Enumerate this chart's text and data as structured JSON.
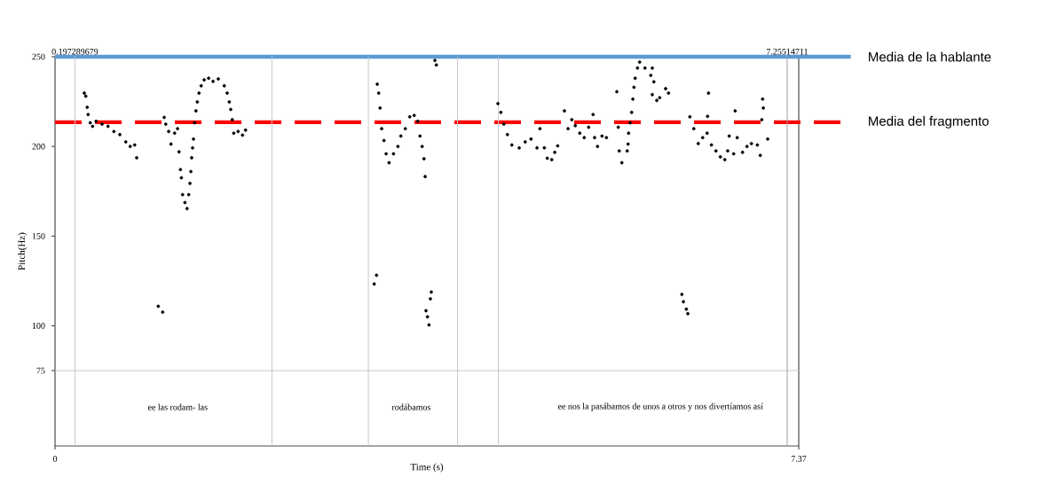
{
  "chart_data": {
    "type": "scatter",
    "xlabel": "Time (s)",
    "ylabel": "Pitch(Hz)",
    "xlim": [
      0,
      7.37
    ],
    "xticks": [
      0,
      7.37
    ],
    "ylim": [
      33,
      250
    ],
    "yticks": [
      75,
      100,
      150,
      200,
      250
    ],
    "marker": "circle",
    "series": [
      {
        "color": "#000000",
        "x": [
          0.29,
          0.305,
          0.319,
          0.328,
          0.349,
          0.372,
          0.407,
          0.466,
          0.525,
          0.583,
          0.642,
          0.701,
          0.745,
          0.789,
          0.809,
          1.023,
          1.067,
          1.082,
          1.097,
          1.126,
          1.149,
          1.185,
          1.214,
          1.229,
          1.243,
          1.252,
          1.264,
          1.287,
          1.308,
          1.325,
          1.337,
          1.346,
          1.354,
          1.363,
          1.372,
          1.383,
          1.396,
          1.41,
          1.427,
          1.448,
          1.478,
          1.522,
          1.566,
          1.618,
          1.677,
          1.706,
          1.727,
          1.741,
          1.756,
          1.771,
          1.814,
          1.858,
          1.888,
          3.163,
          3.186,
          3.193,
          3.207,
          3.221,
          3.237,
          3.26,
          3.281,
          3.31,
          3.354,
          3.398,
          3.427,
          3.471,
          3.515,
          3.559,
          3.594,
          3.617,
          3.638,
          3.656,
          3.668,
          3.676,
          3.691,
          3.706,
          3.72,
          3.729,
          3.764,
          3.779,
          4.389,
          4.418,
          4.447,
          4.483,
          4.527,
          4.6,
          4.659,
          4.717,
          4.776,
          4.805,
          4.849,
          4.878,
          4.922,
          4.952,
          4.981,
          5.048,
          5.084,
          5.121,
          5.156,
          5.2,
          5.244,
          5.288,
          5.332,
          5.347,
          5.376,
          5.42,
          5.464,
          5.567,
          5.582,
          5.591,
          5.617,
          5.67,
          5.679,
          5.684,
          5.699,
          5.714,
          5.726,
          5.737,
          5.749,
          5.772,
          5.793,
          5.846,
          5.904,
          5.919,
          5.934,
          5.919,
          5.963,
          5.992,
          6.051,
          6.08,
          6.212,
          6.227,
          6.256,
          6.271,
          6.291,
          6.33,
          6.374,
          6.418,
          6.462,
          6.476,
          6.467,
          6.505,
          6.549,
          6.593,
          6.637,
          6.666,
          6.681,
          6.725,
          6.74,
          6.76,
          6.813,
          6.857,
          6.901,
          6.96,
          6.989,
          7.004,
          7.019,
          7.012,
          7.062
        ],
        "values": [
          229.7,
          228,
          221.8,
          217.8,
          213.2,
          211.2,
          214,
          212.4,
          211.2,
          208.3,
          206.6,
          202.5,
          200,
          200.8,
          193.7,
          110.9,
          107.6,
          216.2,
          212.4,
          208.3,
          201.3,
          207.4,
          209.9,
          197,
          187.1,
          182.5,
          173.1,
          168.7,
          165.3,
          173.1,
          179.4,
          186,
          193.7,
          199.2,
          204.1,
          213.2,
          219.8,
          224.8,
          229.7,
          233.8,
          237.1,
          238,
          236.3,
          237.6,
          233.8,
          229.7,
          224.8,
          220.6,
          214.9,
          207.4,
          208.3,
          206.3,
          209.1,
          123.3,
          128.2,
          234.7,
          229.7,
          221.4,
          209.9,
          203.3,
          195.9,
          190.9,
          195.9,
          200,
          205.8,
          209.9,
          216.5,
          217.3,
          214,
          205.8,
          200,
          193.1,
          183.2,
          108.4,
          105,
          100.5,
          115,
          118.8,
          247.9,
          245.4,
          223.9,
          219,
          212.4,
          206.6,
          200.8,
          199.2,
          202.5,
          204.1,
          199.2,
          209.9,
          199.2,
          193.4,
          192.6,
          196.7,
          200.3,
          219.8,
          209.9,
          214.9,
          211.6,
          207.4,
          204.9,
          210.7,
          217.8,
          204.9,
          200,
          205.8,
          204.9,
          230.5,
          210.7,
          197.5,
          190.9,
          197.5,
          201.3,
          207.4,
          213.2,
          219,
          226.4,
          233,
          238,
          243.7,
          247,
          243.7,
          239.6,
          243.7,
          236,
          228.9,
          225.6,
          227.2,
          232.2,
          229.7,
          117.5,
          113.4,
          109.3,
          106.8,
          216.5,
          209.9,
          201.6,
          204.9,
          207.4,
          229.7,
          216.8,
          200.8,
          197.5,
          194.2,
          192.6,
          197.5,
          205.8,
          195.9,
          219.8,
          204.9,
          196.7,
          200,
          201.6,
          200.8,
          195,
          214.9,
          221.4,
          226.4,
          204.1
        ]
      }
    ],
    "ref_lines": [
      {
        "axis": "y",
        "value": 250,
        "label": "Media de la hablante",
        "color": "#5b9bd5",
        "line_style": "solid"
      },
      {
        "axis": "y",
        "value": 213.5,
        "label": "Media del fragmento",
        "color": "#ff0000",
        "line_style": "dashed"
      },
      {
        "axis": "y",
        "value": 75,
        "color": "#c8c8c8",
        "line_style": "solid"
      },
      {
        "axis": "x",
        "value": 0.197289679,
        "label": "0.197289679",
        "color": "#c8c8c8",
        "line_style": "solid"
      },
      {
        "axis": "x",
        "value": 2.149,
        "color": "#c8c8c8",
        "line_style": "solid"
      },
      {
        "axis": "x",
        "value": 3.105,
        "color": "#c8c8c8",
        "line_style": "solid"
      },
      {
        "axis": "x",
        "value": 3.989,
        "color": "#c8c8c8",
        "line_style": "solid"
      },
      {
        "axis": "x",
        "value": 4.393,
        "color": "#c8c8c8",
        "line_style": "solid"
      },
      {
        "axis": "x",
        "value": 7.25514711,
        "label": "7.25514711",
        "color": "#a0a0a0",
        "line_style": "solid"
      }
    ],
    "annotations": [
      "ee las rodam- las",
      "rodábamos",
      "ee nos la pasábamos de unos a otros y nos divertíamos así"
    ]
  }
}
